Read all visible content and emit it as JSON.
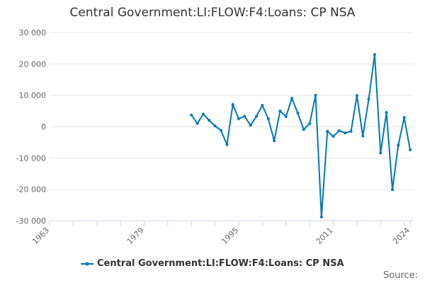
{
  "chart_data": {
    "type": "line",
    "title": "Central Government:LI:FLOW:F4:Loans: CP NSA",
    "xlabel": "",
    "ylabel": "",
    "xlim": [
      1963,
      2024
    ],
    "ylim": [
      -30000,
      30000
    ],
    "x_ticks": [
      "1963",
      "1979",
      "1995",
      "2011",
      "2024"
    ],
    "y_ticks": [
      "30 000",
      "20 000",
      "10 000",
      "0",
      "-10 000",
      "-20 000",
      "-30 000"
    ],
    "grid": true,
    "legend_placement": "bottom",
    "color": "#0077bb",
    "series": [
      {
        "name": "Central Government:LI:FLOW:F4:Loans: CP NSA",
        "x": [
          1987,
          1988,
          1989,
          1990,
          1991,
          1992,
          1993,
          1994,
          1995,
          1996,
          1997,
          1998,
          1999,
          2000,
          2001,
          2002,
          2003,
          2004,
          2005,
          2006,
          2007,
          2008,
          2009,
          2010,
          2011,
          2012,
          2013,
          2014,
          2015,
          2016,
          2017,
          2018,
          2019,
          2020,
          2021,
          2022,
          2023,
          2024
        ],
        "values": [
          3700,
          1000,
          4000,
          2000,
          200,
          -1200,
          -5700,
          7000,
          2500,
          3300,
          400,
          3300,
          6800,
          2500,
          -4500,
          5000,
          3200,
          9000,
          4300,
          -900,
          1000,
          10000,
          -28800,
          -1500,
          -3100,
          -1300,
          -2000,
          -1500,
          9900,
          -3000,
          8800,
          23000,
          -8400,
          4500,
          -20100,
          -5900,
          2900,
          -7400
        ]
      }
    ]
  },
  "source_label": "Source:"
}
